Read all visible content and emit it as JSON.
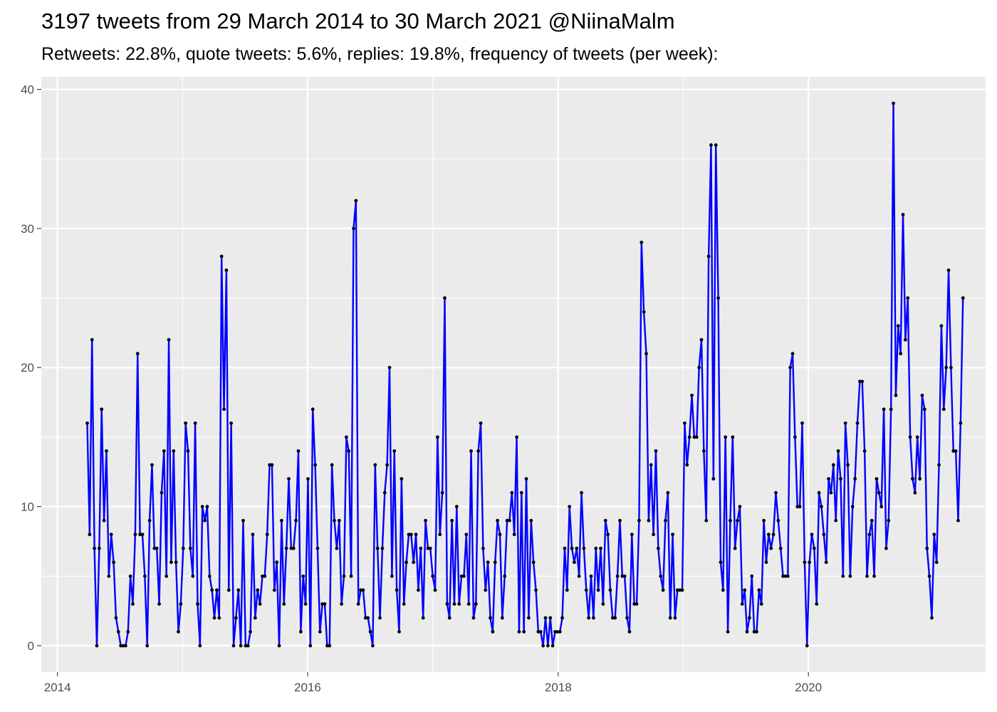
{
  "title": "3197 tweets from 29 March 2014 to 30 March 2021 @NiinaMalm",
  "subtitle": "Retweets: 22.8%, quote tweets: 5.6%, replies: 19.8%, frequency of tweets (per week):",
  "colors": {
    "line": "#0000ff",
    "point": "#000000",
    "panel": "#ebebeb",
    "grid": "#ffffff"
  },
  "chart_data": {
    "type": "line",
    "title": "3197 tweets from 29 March 2014 to 30 March 2021 @NiinaMalm",
    "subtitle": "Retweets: 22.8%, quote tweets: 5.6%, replies: 19.8%, frequency of tweets (per week):",
    "xlabel": "",
    "ylabel": "",
    "x_axis": "date",
    "x_start": "2014-03-29",
    "x_step": "1 week",
    "xlim": [
      "2013-11-15",
      "2021-06-01"
    ],
    "ylim": [
      -1.9,
      40.9
    ],
    "xticks": [
      "2014",
      "2016",
      "2018",
      "2020"
    ],
    "xtick_dates": [
      "2014-01-01",
      "2016-01-01",
      "2018-01-01",
      "2020-01-01"
    ],
    "yticks": [
      0,
      10,
      20,
      30,
      40
    ],
    "grid": true,
    "legend": "none",
    "series": [
      {
        "values": [
          16,
          8,
          22,
          7,
          0,
          7,
          17,
          9,
          14,
          5,
          8,
          6,
          2,
          1,
          0,
          0,
          0,
          1,
          5,
          3,
          8,
          21,
          8,
          8,
          5,
          0,
          9,
          13,
          7,
          7,
          3,
          11,
          14,
          5,
          22,
          6,
          14,
          6,
          1,
          3,
          7,
          16,
          14,
          7,
          5,
          16,
          3,
          0,
          10,
          9,
          10,
          5,
          4,
          2,
          4,
          2,
          28,
          17,
          27,
          4,
          16,
          0,
          2,
          4,
          0,
          9,
          0,
          0,
          1,
          8,
          2,
          4,
          3,
          5,
          5,
          8,
          13,
          13,
          4,
          6,
          0,
          9,
          3,
          7,
          12,
          7,
          7,
          9,
          14,
          1,
          5,
          3,
          12,
          0,
          17,
          13,
          7,
          1,
          3,
          3,
          0,
          0,
          13,
          9,
          7,
          9,
          3,
          5,
          15,
          14,
          5,
          30,
          32,
          3,
          4,
          4,
          2,
          2,
          1,
          0,
          13,
          7,
          2,
          7,
          11,
          13,
          20,
          5,
          14,
          4,
          1,
          12,
          3,
          6,
          8,
          8,
          6,
          8,
          4,
          7,
          2,
          9,
          7,
          7,
          5,
          4,
          15,
          8,
          11,
          25,
          3,
          2,
          9,
          3,
          10,
          3,
          5,
          5,
          8,
          3,
          14,
          2,
          3,
          14,
          16,
          7,
          4,
          6,
          2,
          1,
          6,
          9,
          8,
          2,
          5,
          9,
          9,
          11,
          8,
          15,
          1,
          11,
          1,
          12,
          2,
          9,
          6,
          4,
          1,
          1,
          0,
          2,
          0,
          2,
          0,
          1,
          1,
          1,
          2,
          7,
          4,
          10,
          7,
          6,
          7,
          5,
          11,
          7,
          4,
          2,
          5,
          2,
          7,
          4,
          7,
          3,
          9,
          8,
          4,
          2,
          2,
          5,
          9,
          5,
          5,
          2,
          1,
          8,
          3,
          3,
          9,
          29,
          24,
          21,
          9,
          13,
          8,
          14,
          7,
          5,
          4,
          9,
          11,
          2,
          8,
          2,
          4,
          4,
          4,
          16,
          13,
          15,
          18,
          15,
          15,
          20,
          22,
          14,
          9,
          28,
          36,
          12,
          36,
          25,
          6,
          4,
          15,
          1,
          9,
          15,
          7,
          9,
          10,
          3,
          4,
          1,
          2,
          5,
          1,
          1,
          4,
          3,
          9,
          6,
          8,
          7,
          8,
          11,
          9,
          7,
          5,
          5,
          5,
          20,
          21,
          15,
          10,
          10,
          16,
          6,
          0,
          6,
          8,
          7,
          3,
          11,
          10,
          8,
          6,
          12,
          11,
          13,
          9,
          14,
          12,
          5,
          16,
          13,
          5,
          10,
          12,
          16,
          19,
          19,
          14,
          5,
          8,
          9,
          5,
          12,
          11,
          10,
          17,
          7,
          9,
          17,
          39,
          18,
          23,
          21,
          31,
          22,
          25,
          15,
          12,
          11,
          15,
          12,
          18,
          17,
          7,
          5,
          2,
          8,
          6,
          13,
          23,
          17,
          20,
          27,
          20,
          14,
          14,
          9,
          16,
          25
        ]
      }
    ]
  }
}
